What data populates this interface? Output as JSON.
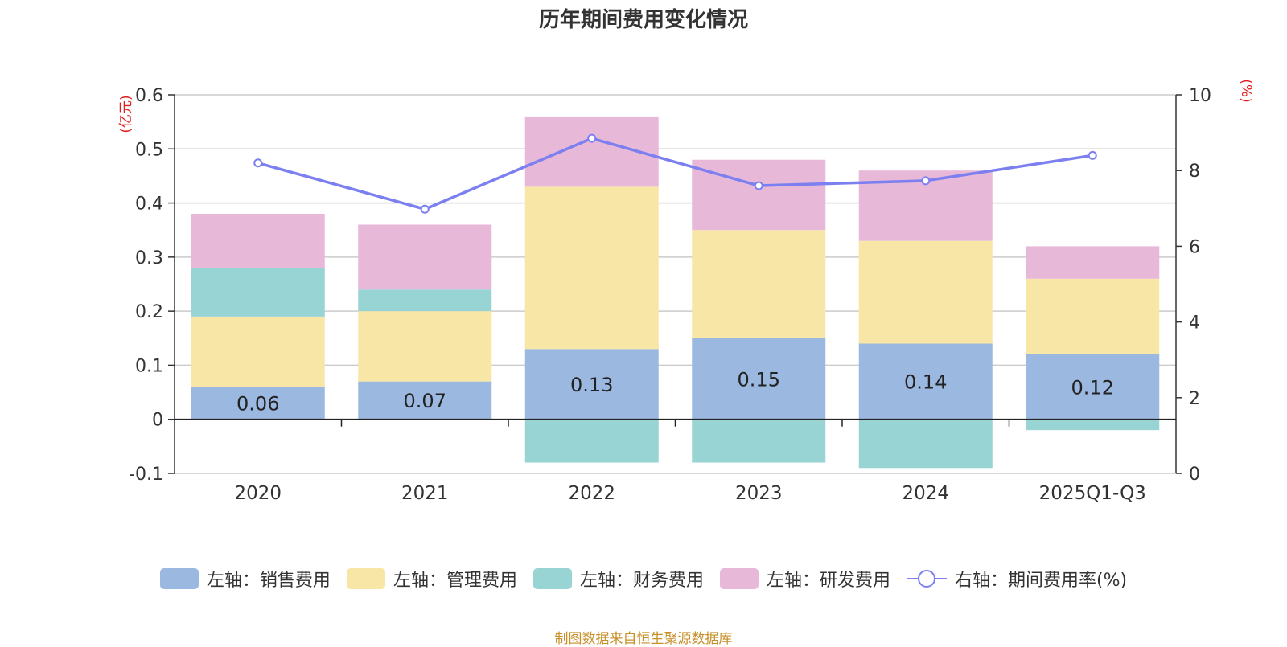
{
  "chart_data": {
    "type": "bar",
    "title": "历年期间费用变化情况",
    "categories": [
      "2020",
      "2021",
      "2022",
      "2023",
      "2024",
      "2025Q1-Q3"
    ],
    "left_axis": {
      "unit_label": "(亿元)",
      "range": [
        -0.1,
        0.6
      ],
      "ticks": [
        "-0.1",
        "0",
        "0.1",
        "0.2",
        "0.3",
        "0.4",
        "0.5",
        "0.6"
      ]
    },
    "right_axis": {
      "unit_label": "(%)",
      "range": [
        0,
        10
      ],
      "ticks": [
        "0",
        "2",
        "4",
        "6",
        "8",
        "10"
      ]
    },
    "series": [
      {
        "name": "左轴：销售费用",
        "type": "bar",
        "axis": "left",
        "color": "#9bb8e0",
        "values": [
          0.06,
          0.07,
          0.13,
          0.15,
          0.14,
          0.12
        ],
        "labels": [
          "0.06",
          "0.07",
          "0.13",
          "0.15",
          "0.14",
          "0.12"
        ]
      },
      {
        "name": "左轴：管理费用",
        "type": "bar",
        "axis": "left",
        "color": "#f8e6a6",
        "values": [
          0.13,
          0.13,
          0.3,
          0.2,
          0.19,
          0.14
        ]
      },
      {
        "name": "左轴：财务费用",
        "type": "bar",
        "axis": "left",
        "color": "#98d4d4",
        "values": [
          0.09,
          0.04,
          -0.08,
          -0.08,
          -0.09,
          -0.02
        ]
      },
      {
        "name": "左轴：研发费用",
        "type": "bar",
        "axis": "left",
        "color": "#e8b8d8",
        "values": [
          0.1,
          0.12,
          0.13,
          0.13,
          0.13,
          0.06
        ]
      },
      {
        "name": "右轴：期间费用率(%)",
        "type": "line",
        "axis": "right",
        "color": "#7b7ff0",
        "values": [
          8.2,
          6.98,
          8.85,
          7.6,
          7.73,
          8.4
        ]
      }
    ]
  },
  "source": "制图数据来自恒生聚源数据库"
}
